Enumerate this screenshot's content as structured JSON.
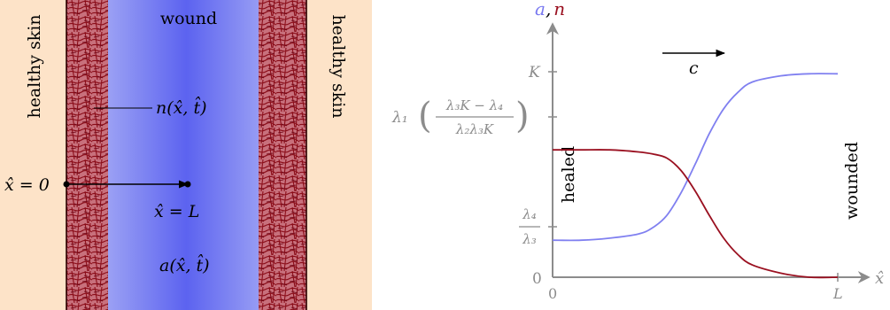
{
  "left_panel": {
    "label_left_skin": "healthy skin",
    "label_right_skin": "healthy skin",
    "label_wound": "wound",
    "label_n": "n(x̂, t̂)",
    "label_x0": "x̂ = 0",
    "label_xL": "x̂ = L",
    "label_a": "a(x̂, t̂)",
    "colors": {
      "skin": "#fde3c8",
      "tissue": "#8a0c18",
      "wound_core": "#5c63f0",
      "wound_edge": "#b7bdf5"
    }
  },
  "right_panel": {
    "y_axis_label_a": "a",
    "y_axis_label_sep": ",",
    "y_axis_label_n": "n",
    "x_axis_label": "x̂",
    "tick_K": "K",
    "tick_0_y": "0",
    "tick_0_x": "0",
    "tick_L": "L",
    "upper_level_prefix": "λ₁",
    "upper_level_num": "λ₃K − λ₄",
    "upper_level_den": "λ₂λ₃K",
    "lower_level_num": "λ₄",
    "lower_level_den": "λ₃",
    "wave_speed": "c",
    "region_left": "healed",
    "region_right": "wounded",
    "colors": {
      "a_curve": "#8080f0",
      "n_curve": "#9a1020",
      "axis": "#8c8c8c"
    }
  },
  "chart_data": {
    "type": "line",
    "x": [
      0,
      0.1,
      0.2,
      0.3,
      0.35,
      0.4,
      0.45,
      0.5,
      0.55,
      0.6,
      0.65,
      0.7,
      0.8,
      0.9,
      1.0
    ],
    "xlim": [
      0,
      1
    ],
    "series": [
      {
        "name": "a",
        "values": [
          0.18,
          0.18,
          0.19,
          0.21,
          0.24,
          0.3,
          0.41,
          0.55,
          0.7,
          0.82,
          0.9,
          0.95,
          0.98,
          0.99,
          0.99
        ]
      },
      {
        "name": "n",
        "values": [
          0.62,
          0.62,
          0.62,
          0.61,
          0.6,
          0.58,
          0.52,
          0.42,
          0.3,
          0.19,
          0.11,
          0.06,
          0.02,
          0.0,
          0.0
        ]
      }
    ]
  }
}
